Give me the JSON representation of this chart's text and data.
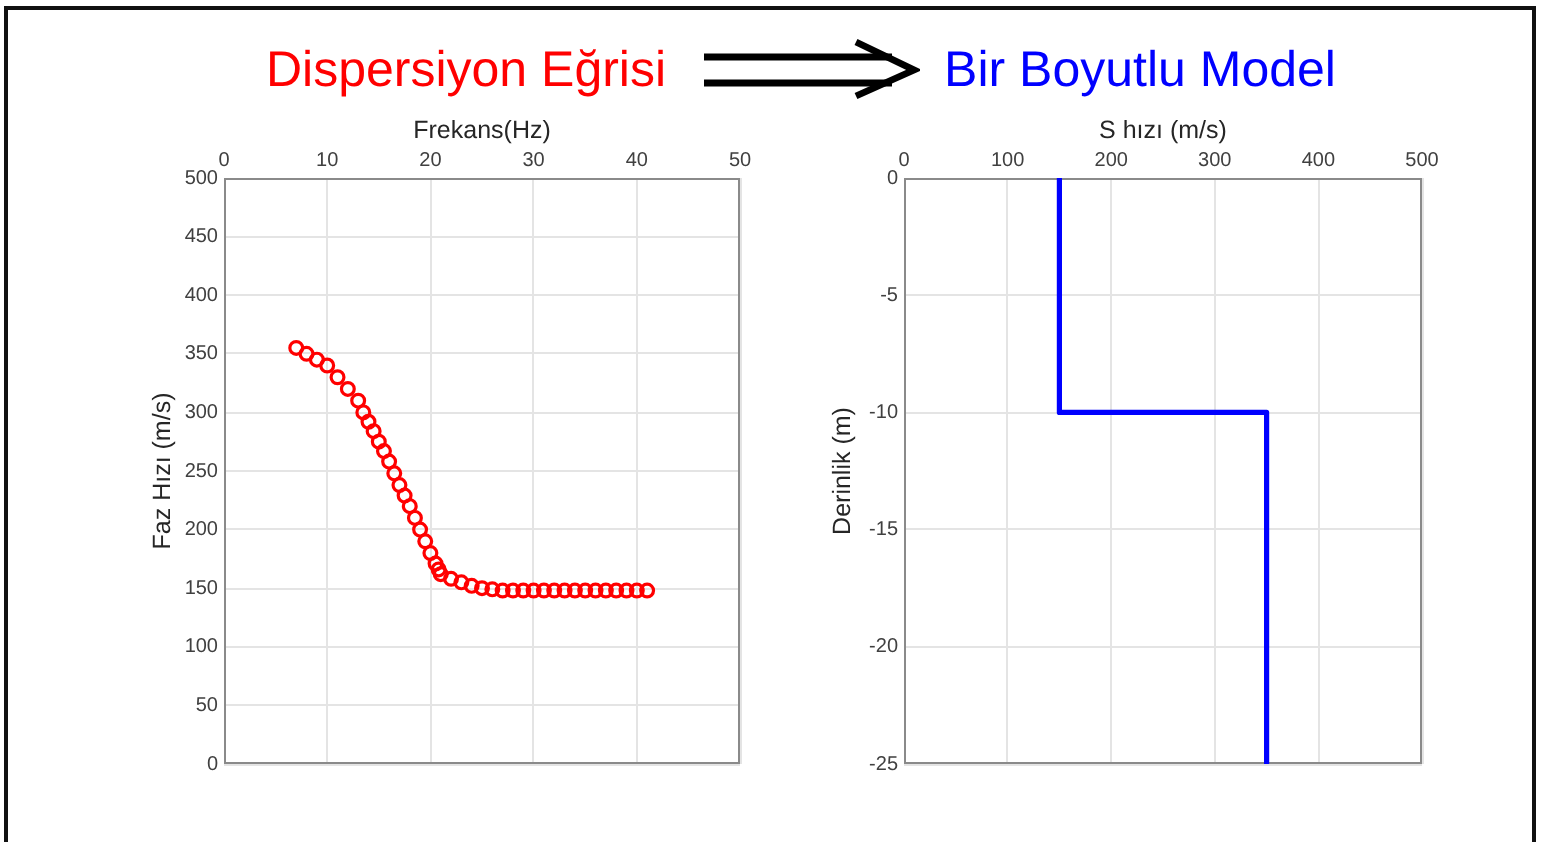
{
  "chart_data": [
    {
      "type": "scatter",
      "title": "Dispersiyon Eğrisi",
      "xlabel": "Frekans(Hz)",
      "ylabel": "Faz Hızı (m/s)",
      "x": [
        7,
        8,
        9,
        10,
        11,
        12,
        13,
        13.5,
        14,
        14.5,
        15,
        15.5,
        16,
        16.5,
        17,
        17.5,
        18,
        18.5,
        19,
        19.5,
        20,
        20.5,
        20.8,
        21,
        22,
        23,
        24,
        25,
        26,
        27,
        28,
        29,
        30,
        31,
        32,
        33,
        34,
        35,
        36,
        37,
        38,
        39,
        40,
        41
      ],
      "series": [
        {
          "color": "#ff0000",
          "values": [
            355,
            350,
            345,
            340,
            330,
            320,
            310,
            300,
            292,
            284,
            275,
            267,
            258,
            248,
            238,
            229,
            220,
            210,
            200,
            190,
            180,
            171,
            166,
            162,
            158,
            155,
            152,
            150,
            149,
            148,
            148,
            148,
            148,
            148,
            148,
            148,
            148,
            148,
            148,
            148,
            148,
            148,
            148,
            148
          ]
        }
      ],
      "xlim": [
        0,
        50
      ],
      "xticks": [
        0,
        10,
        20,
        30,
        40,
        50
      ],
      "ylim": [
        0,
        500
      ],
      "yticks": [
        0,
        50,
        100,
        150,
        200,
        250,
        300,
        350,
        400,
        450,
        500
      ],
      "grid": true,
      "marker": "circle"
    },
    {
      "type": "line",
      "title": "Bir Boyutlu Model",
      "xlabel": "S hızı (m/s)",
      "ylabel": "Derinlik (m)",
      "x": [
        150,
        150,
        350,
        350
      ],
      "series": [
        {
          "color": "#0000ff",
          "values": [
            0,
            -10,
            -10,
            -25
          ]
        }
      ],
      "xlim": [
        0,
        500
      ],
      "xticks": [
        0,
        100,
        200,
        300,
        400,
        500
      ],
      "ylim": [
        -25,
        0
      ],
      "yticks": [
        -25,
        -20,
        -15,
        -10,
        -5,
        0
      ],
      "grid": true,
      "marker": "none",
      "line_style": "solid"
    }
  ]
}
